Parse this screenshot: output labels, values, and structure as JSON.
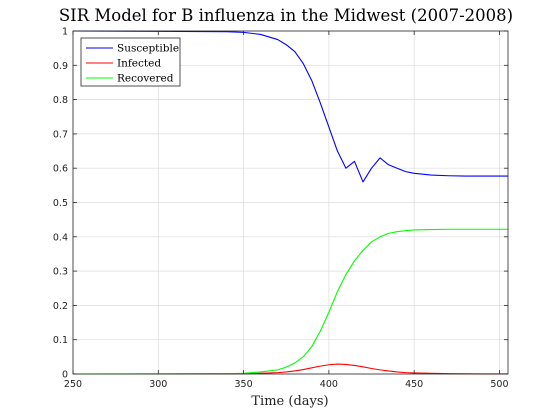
{
  "chart_data": {
    "type": "line",
    "title": "SIR Model for B influenza in the Midwest (2007-2008)",
    "xlabel": "Time (days)",
    "ylabel": "",
    "xlim": [
      250,
      505
    ],
    "ylim": [
      0,
      1
    ],
    "x_ticks": [
      "250",
      "300",
      "350",
      "400",
      "450",
      "500"
    ],
    "y_ticks": [
      "0",
      "0.1",
      "0.2",
      "0.3",
      "0.4",
      "0.5",
      "0.6",
      "0.7",
      "0.8",
      "0.9",
      "1"
    ],
    "grid": true,
    "legend_position": "top-left",
    "x": [
      250,
      300,
      340,
      350,
      360,
      370,
      375,
      380,
      385,
      390,
      395,
      400,
      405,
      410,
      415,
      420,
      425,
      430,
      435,
      440,
      445,
      450,
      460,
      470,
      480,
      490,
      505
    ],
    "series": [
      {
        "name": "Susceptible",
        "color": "#0000ff",
        "values": [
          1.0,
          0.999,
          0.998,
          0.996,
          0.99,
          0.975,
          0.96,
          0.94,
          0.905,
          0.855,
          0.79,
          0.72,
          0.65,
          0.6,
          0.62,
          0.56,
          0.6,
          0.63,
          0.61,
          0.6,
          0.59,
          0.585,
          0.58,
          0.578,
          0.577,
          0.577,
          0.577
        ]
      },
      {
        "name": "Infected",
        "color": "#ff0000",
        "values": [
          0.0,
          0.0,
          0.0005,
          0.001,
          0.002,
          0.004,
          0.006,
          0.009,
          0.013,
          0.018,
          0.023,
          0.027,
          0.029,
          0.028,
          0.025,
          0.021,
          0.016,
          0.012,
          0.009,
          0.006,
          0.004,
          0.003,
          0.002,
          0.001,
          0.0005,
          0.0003,
          0.0001
        ]
      },
      {
        "name": "Recovered",
        "color": "#00ff00",
        "values": [
          0.0,
          0.0005,
          0.001,
          0.002,
          0.006,
          0.012,
          0.02,
          0.032,
          0.05,
          0.08,
          0.125,
          0.18,
          0.24,
          0.29,
          0.33,
          0.36,
          0.385,
          0.4,
          0.41,
          0.415,
          0.418,
          0.42,
          0.421,
          0.422,
          0.422,
          0.422,
          0.422
        ]
      }
    ]
  }
}
